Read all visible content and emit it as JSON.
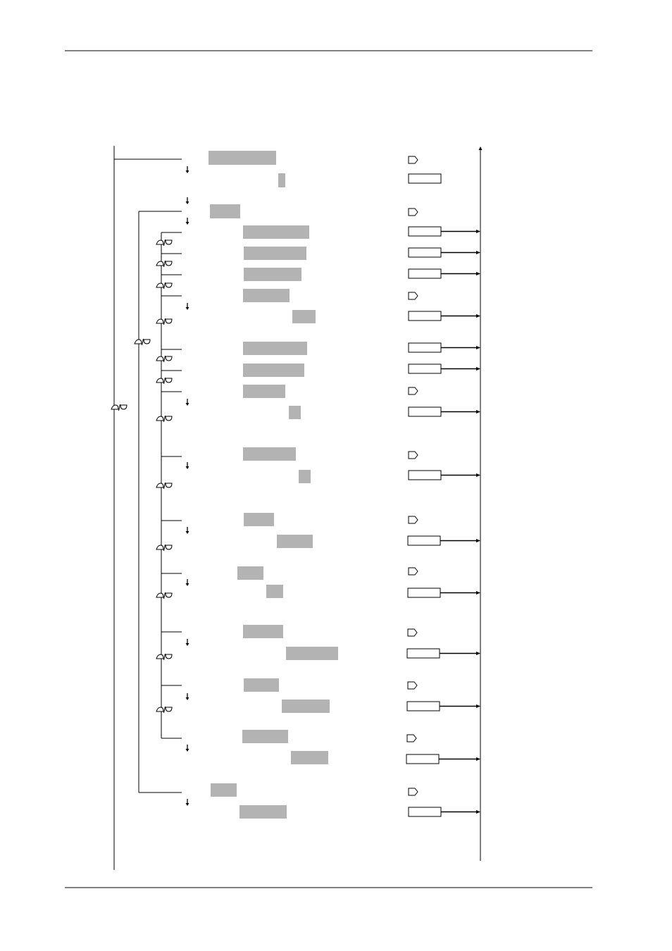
{
  "diagram": {
    "type": "menu-flow",
    "colors": {
      "line": "#000000",
      "field": "#b3b3b3",
      "box": "#ffffff"
    },
    "icons": {
      "enter_key": "enter-key-icon",
      "up_down_keys": "up-down-arrow-keys-icon",
      "step_down": "small-down-arrow-icon",
      "output_arrow": "right-arrow-icon"
    },
    "level1_items": 3,
    "level2_items": 13,
    "value_boxes": 16,
    "enter_keys": 17
  }
}
